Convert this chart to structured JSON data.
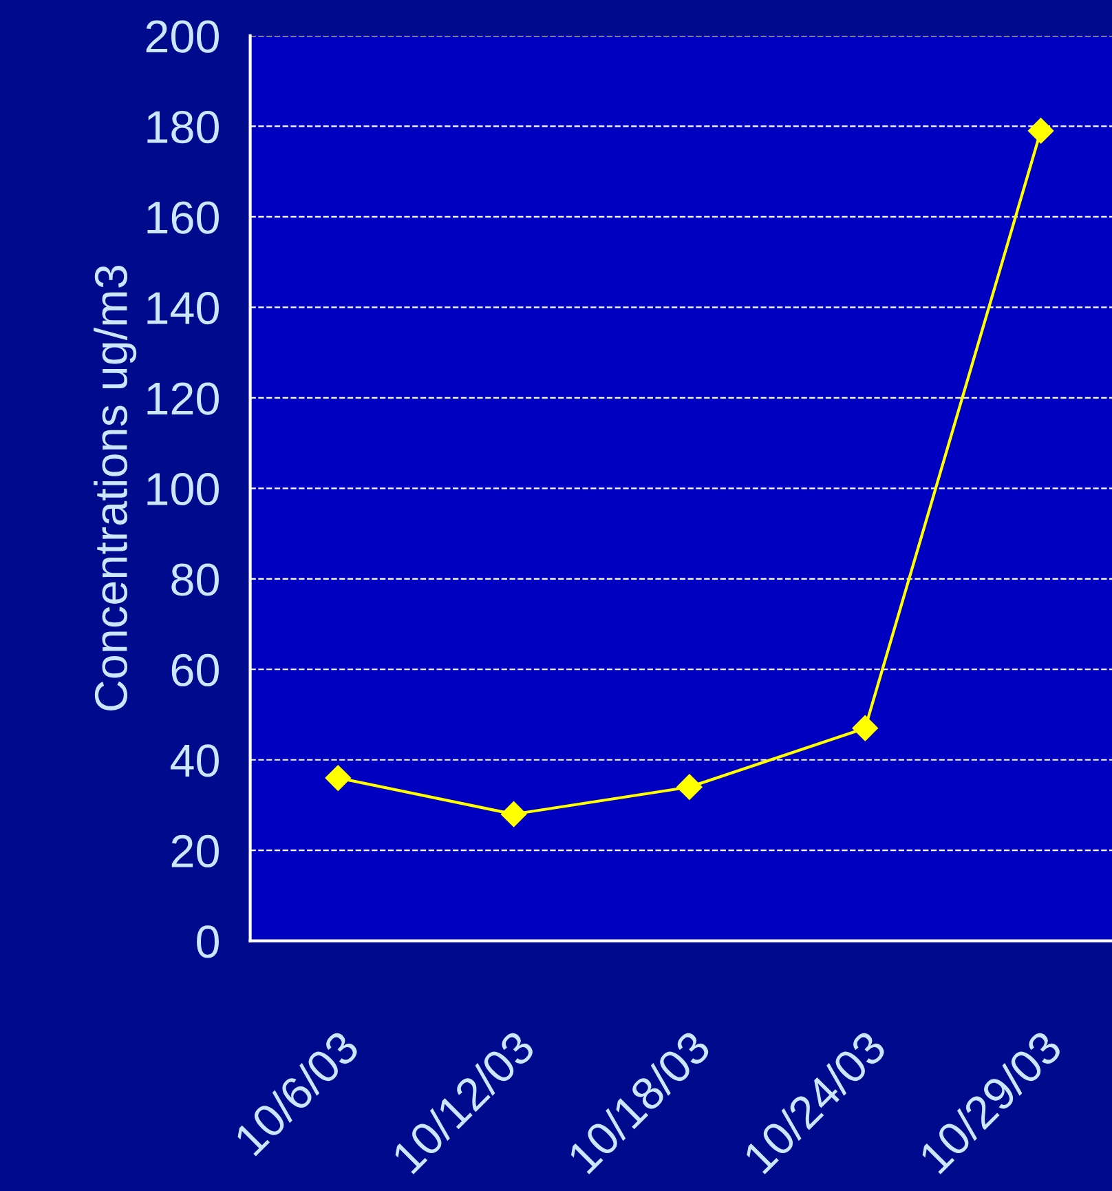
{
  "chart_data": {
    "type": "line",
    "ylabel": "Concentrations ug/m3",
    "categories": [
      "10/6/03",
      "10/12/03",
      "10/18/03",
      "10/24/03",
      "10/29/03"
    ],
    "series": [
      {
        "color": "#ffff00",
        "values": [
          36,
          28,
          34,
          47,
          179
        ]
      }
    ],
    "ylim": [
      0,
      200
    ],
    "yticks": [
      0,
      20,
      40,
      60,
      80,
      100,
      120,
      140,
      160,
      180,
      200
    ],
    "grid": "y",
    "marker": "diamond",
    "line_style": "solid",
    "legend": false
  }
}
